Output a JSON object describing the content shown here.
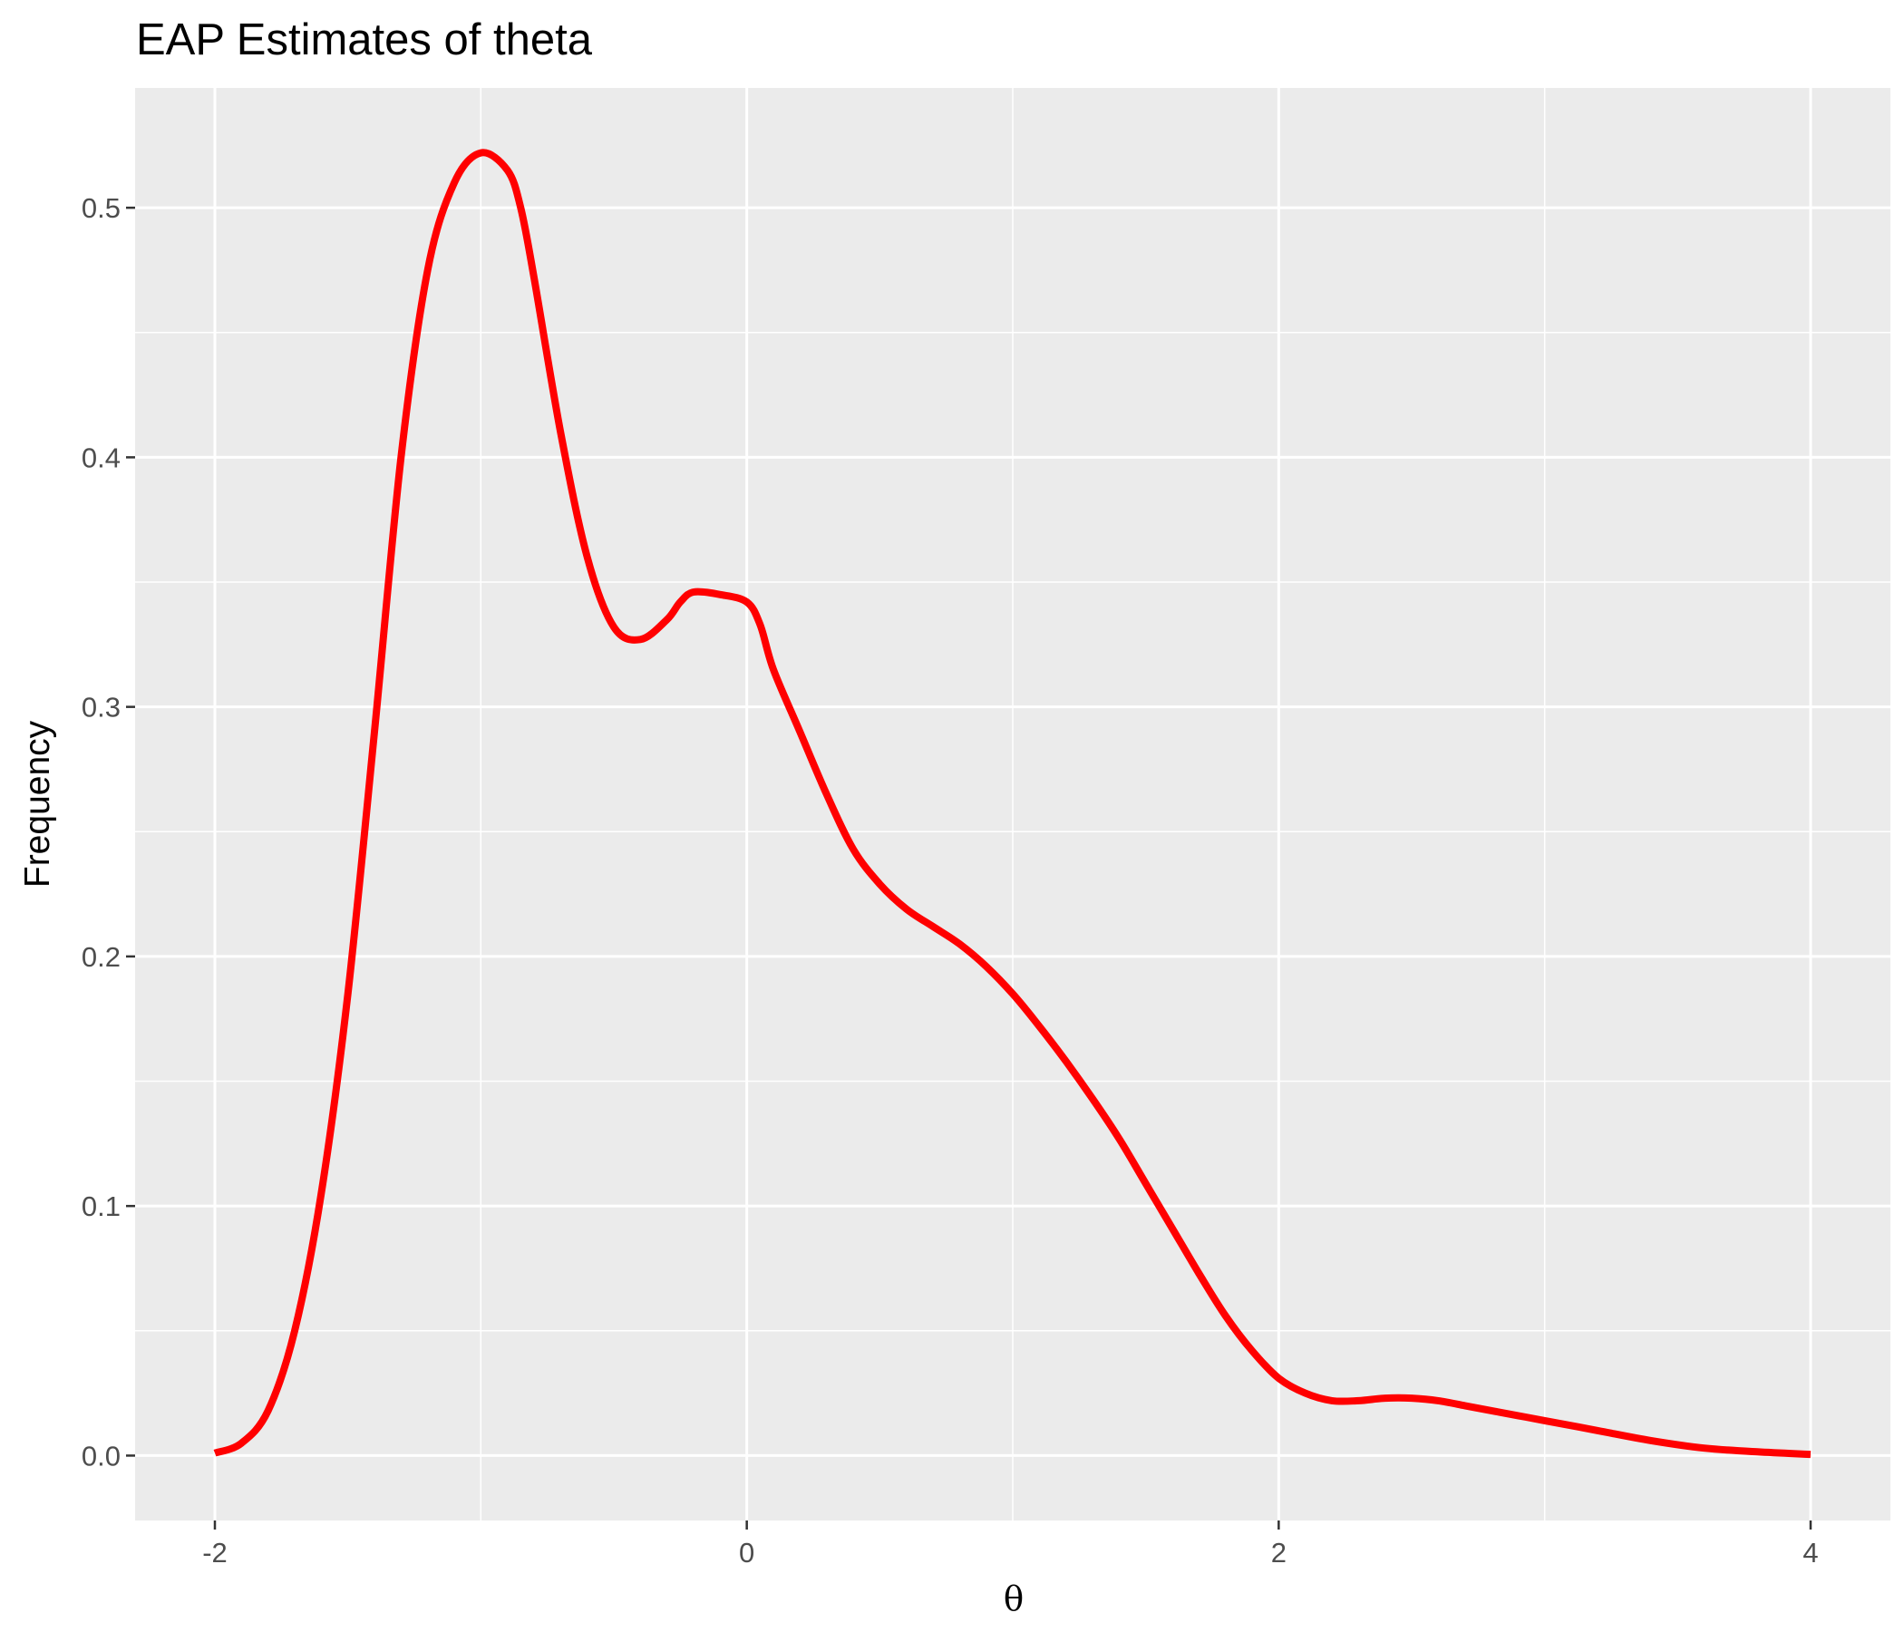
{
  "chart_data": {
    "type": "line",
    "title": "EAP Estimates of theta",
    "xlabel": "θ",
    "ylabel": "Frequency",
    "xlim": [
      -2.3,
      4.3
    ],
    "ylim": [
      -0.026,
      0.548
    ],
    "x_ticks": [
      -2,
      0,
      2,
      4
    ],
    "x_tick_labels": [
      "-2",
      "0",
      "2",
      "4"
    ],
    "y_ticks": [
      0.0,
      0.1,
      0.2,
      0.3,
      0.4,
      0.5
    ],
    "y_tick_labels": [
      "0.0",
      "0.1",
      "0.2",
      "0.3",
      "0.4",
      "0.5"
    ],
    "grid": true,
    "series": [
      {
        "color": "#ff0000",
        "x": [
          -2.0,
          -1.9,
          -1.8,
          -1.7,
          -1.6,
          -1.5,
          -1.4,
          -1.3,
          -1.2,
          -1.1,
          -1.0,
          -0.9,
          -0.85,
          -0.8,
          -0.7,
          -0.6,
          -0.5,
          -0.4,
          -0.3,
          -0.25,
          -0.2,
          -0.1,
          0.0,
          0.05,
          0.1,
          0.2,
          0.3,
          0.4,
          0.5,
          0.6,
          0.7,
          0.8,
          0.9,
          1.0,
          1.1,
          1.2,
          1.3,
          1.4,
          1.5,
          1.6,
          1.7,
          1.8,
          1.9,
          2.0,
          2.1,
          2.2,
          2.3,
          2.4,
          2.5,
          2.6,
          2.7,
          2.8,
          2.9,
          3.0,
          3.2,
          3.4,
          3.6,
          3.8,
          4.0
        ],
        "y": [
          0.001,
          0.005,
          0.018,
          0.05,
          0.105,
          0.185,
          0.29,
          0.4,
          0.475,
          0.51,
          0.522,
          0.515,
          0.5,
          0.472,
          0.41,
          0.36,
          0.332,
          0.327,
          0.335,
          0.342,
          0.346,
          0.345,
          0.342,
          0.333,
          0.315,
          0.29,
          0.265,
          0.243,
          0.229,
          0.219,
          0.212,
          0.205,
          0.196,
          0.185,
          0.172,
          0.158,
          0.143,
          0.127,
          0.109,
          0.091,
          0.073,
          0.056,
          0.042,
          0.031,
          0.025,
          0.022,
          0.022,
          0.023,
          0.023,
          0.022,
          0.02,
          0.018,
          0.016,
          0.014,
          0.01,
          0.006,
          0.003,
          0.0015,
          0.0005
        ]
      }
    ]
  }
}
